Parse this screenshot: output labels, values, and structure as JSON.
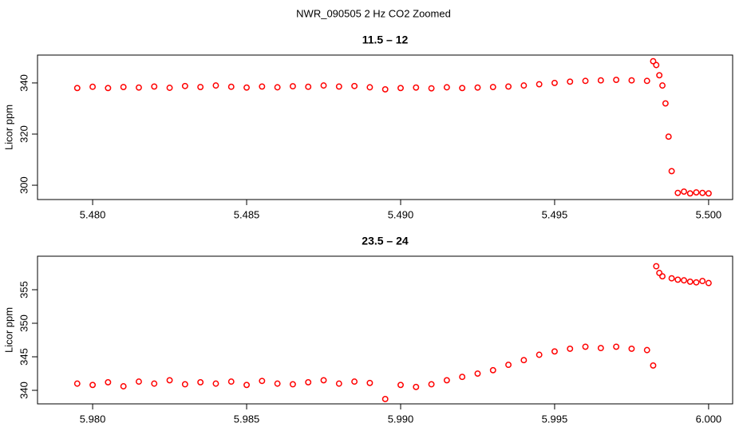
{
  "title": "NWR_090505  2 Hz CO2 Zoomed",
  "chart_data": [
    {
      "type": "scatter",
      "title": "11.5 – 12",
      "y_label": "Licor ppm",
      "color": "#ff0000",
      "xlim": [
        5.47821,
        5.50078
      ],
      "ylim": [
        294.4,
        350.9
      ],
      "xticks": [
        {
          "value": 5.48,
          "label": "5.480"
        },
        5.485,
        {
          "value": 5.49,
          "label": "5.490"
        },
        5.495,
        {
          "value": 5.5,
          "label": "5.500"
        }
      ],
      "yticks": [
        300,
        320,
        340
      ],
      "x": [
        5.4795,
        5.48,
        5.4805,
        5.481,
        5.4815,
        5.482,
        5.4825,
        5.483,
        5.4835,
        5.484,
        5.4845,
        5.485,
        5.4855,
        5.486,
        5.4865,
        5.487,
        5.4875,
        5.488,
        5.4885,
        5.489,
        5.4895,
        5.49,
        5.4905,
        5.491,
        5.4915,
        5.492,
        5.4925,
        5.493,
        5.4935,
        5.494,
        5.4945,
        5.495,
        5.4955,
        5.496,
        5.4965,
        5.497,
        5.4975,
        5.498,
        5.4982,
        5.4983,
        5.4984,
        5.4985,
        5.4986,
        5.4987,
        5.4988,
        5.499,
        5.4992,
        5.4994,
        5.4996,
        5.4998,
        5.5
      ],
      "values": [
        338,
        338.5,
        338,
        338.4,
        338.2,
        338.6,
        338.1,
        338.8,
        338.4,
        339,
        338.5,
        338.2,
        338.6,
        338.3,
        338.7,
        338.5,
        339,
        338.6,
        338.8,
        338.3,
        337.5,
        338,
        338.2,
        337.9,
        338.3,
        338,
        338.2,
        338.4,
        338.6,
        339,
        339.5,
        340,
        340.5,
        340.8,
        341,
        341.2,
        341,
        340.8,
        348.5,
        347,
        343,
        339,
        332,
        319,
        305.5,
        297,
        297.5,
        296.8,
        297.2,
        297,
        296.8
      ]
    },
    {
      "type": "scatter",
      "title": "23.5 – 24",
      "y_label": "Licor ppm",
      "color": "#ff0000",
      "xlim": [
        5.97821,
        6.00078
      ],
      "ylim": [
        337.98,
        360
      ],
      "xticks": [
        {
          "value": 5.98,
          "label": "5.980"
        },
        5.985,
        {
          "value": 5.99,
          "label": "5.990"
        },
        5.995,
        {
          "value": 6,
          "label": "6.000"
        }
      ],
      "yticks": [
        340,
        345,
        350,
        355
      ],
      "x": [
        5.9795,
        5.98,
        5.9805,
        5.981,
        5.9815,
        5.982,
        5.9825,
        5.983,
        5.9835,
        5.984,
        5.9845,
        5.985,
        5.9855,
        5.986,
        5.9865,
        5.987,
        5.9875,
        5.988,
        5.9885,
        5.989,
        5.9895,
        5.99,
        5.9905,
        5.991,
        5.9915,
        5.992,
        5.9925,
        5.993,
        5.9935,
        5.994,
        5.9945,
        5.995,
        5.9955,
        5.996,
        5.9965,
        5.997,
        5.9975,
        5.998,
        5.9982,
        5.9983,
        5.9984,
        5.9985,
        5.9988,
        5.999,
        5.9992,
        5.9994,
        5.9996,
        5.9998,
        6
      ],
      "values": [
        341,
        340.8,
        341.2,
        340.6,
        341.3,
        341,
        341.5,
        340.9,
        341.2,
        341,
        341.3,
        340.8,
        341.4,
        341,
        340.9,
        341.2,
        341.5,
        341,
        341.3,
        341.1,
        338.7,
        340.8,
        340.5,
        340.9,
        341.5,
        342,
        342.5,
        343,
        343.8,
        344.5,
        345.3,
        345.8,
        346.2,
        346.5,
        346.3,
        346.5,
        346.2,
        346,
        343.7,
        358.5,
        357.5,
        357,
        356.7,
        356.5,
        356.4,
        356.2,
        356.1,
        356.3,
        356
      ]
    }
  ]
}
